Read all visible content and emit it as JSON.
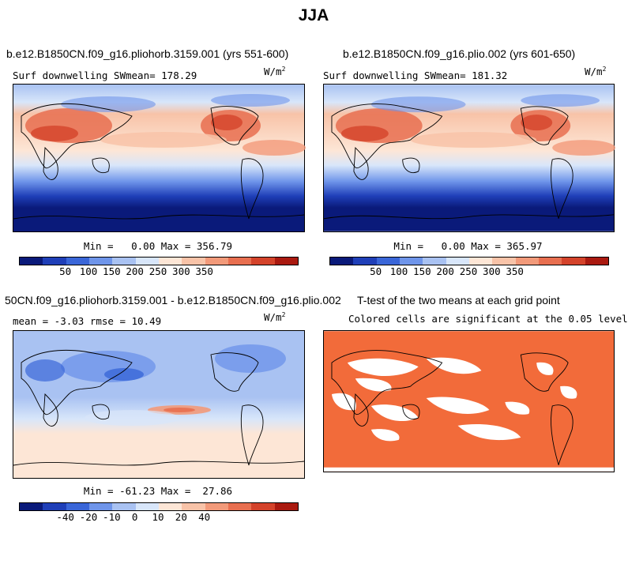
{
  "figure": {
    "title": "JJA"
  },
  "panels": [
    {
      "title": "b.e12.B1850CN.f09_g16.pliohorb.3159.001 (yrs 551-600)",
      "variable": "Surf downwelling SW",
      "mean_label": "mean= 178.29",
      "units": "W/m",
      "units_exp": "2",
      "minmax": "Min =   0.00 Max = 356.79",
      "ticks": [
        "50",
        "100",
        "150",
        "200",
        "250",
        "300",
        "350"
      ]
    },
    {
      "title": "b.e12.B1850CN.f09_g16.plio.002 (yrs 601-650)",
      "variable": "Surf downwelling SW",
      "mean_label": "mean= 181.32",
      "units": "W/m",
      "units_exp": "2",
      "minmax": "Min =   0.00 Max = 365.97",
      "ticks": [
        "50",
        "100",
        "150",
        "200",
        "250",
        "300",
        "350"
      ]
    },
    {
      "title": "50CN.f09_g16.pliohorb.3159.001 - b.e12.B1850CN.f09_g16.plio.002",
      "stats": "mean =  -3.03    rmse =  10.49",
      "units": "W/m",
      "units_exp": "2",
      "minmax": "Min = -61.23 Max =  27.86",
      "ticks": [
        "-40",
        "-20",
        "-10",
        "0",
        "10",
        "20",
        "40"
      ]
    },
    {
      "title": "T-test of the two means at each grid point",
      "subtitle": "Colored cells are significant at the 0.05 level"
    }
  ],
  "colors": {
    "palette": [
      "#0a1a7a",
      "#1f3fb8",
      "#3a66d8",
      "#6f95ea",
      "#a9c2f2",
      "#d8e6fa",
      "#fde6d6",
      "#f8c3a8",
      "#f29a7a",
      "#e86f50",
      "#d4432b",
      "#aa1a10"
    ],
    "significant": "#f26b3a"
  }
}
